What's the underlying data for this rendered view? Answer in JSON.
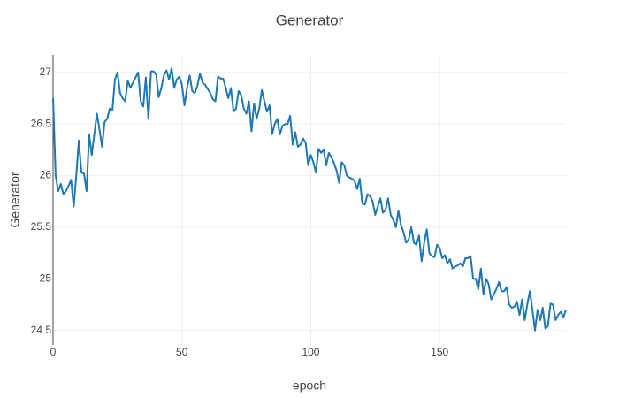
{
  "chart_data": {
    "type": "line",
    "title": "Generator",
    "x_label": "epoch",
    "y_label": "Generator",
    "color": "#1f77b4",
    "grid": true,
    "xlim": [
      0,
      199
    ],
    "xticks": [
      0,
      50,
      100,
      150
    ],
    "ylim": [
      24.36,
      27.17
    ],
    "yticks": [
      24.5,
      25,
      25.5,
      26,
      26.5,
      27
    ],
    "x": [
      0,
      1,
      2,
      3,
      4,
      5,
      6,
      7,
      8,
      9,
      10,
      11,
      12,
      13,
      14,
      15,
      16,
      17,
      18,
      19,
      20,
      21,
      22,
      23,
      24,
      25,
      26,
      27,
      28,
      29,
      30,
      31,
      32,
      33,
      34,
      35,
      36,
      37,
      38,
      39,
      40,
      41,
      42,
      43,
      44,
      45,
      46,
      47,
      48,
      49,
      50,
      51,
      52,
      53,
      54,
      55,
      56,
      57,
      58,
      59,
      60,
      61,
      62,
      63,
      64,
      65,
      66,
      67,
      68,
      69,
      70,
      71,
      72,
      73,
      74,
      75,
      76,
      77,
      78,
      79,
      80,
      81,
      82,
      83,
      84,
      85,
      86,
      87,
      88,
      89,
      90,
      91,
      92,
      93,
      94,
      95,
      96,
      97,
      98,
      99,
      100,
      101,
      102,
      103,
      104,
      105,
      106,
      107,
      108,
      109,
      110,
      111,
      112,
      113,
      114,
      115,
      116,
      117,
      118,
      119,
      120,
      121,
      122,
      123,
      124,
      125,
      126,
      127,
      128,
      129,
      130,
      131,
      132,
      133,
      134,
      135,
      136,
      137,
      138,
      139,
      140,
      141,
      142,
      143,
      144,
      145,
      146,
      147,
      148,
      149,
      150,
      151,
      152,
      153,
      154,
      155,
      156,
      157,
      158,
      159,
      160,
      161,
      162,
      163,
      164,
      165,
      166,
      167,
      168,
      169,
      170,
      171,
      172,
      173,
      174,
      175,
      176,
      177,
      178,
      179,
      180,
      181,
      182,
      183,
      184,
      185,
      186,
      187,
      188,
      189,
      190,
      191,
      192,
      193,
      194,
      195,
      196,
      197,
      198,
      199
    ],
    "values": [
      26.75,
      26.0,
      25.85,
      25.92,
      25.82,
      25.85,
      25.9,
      25.96,
      25.7,
      26.0,
      26.34,
      26.03,
      26.02,
      25.85,
      26.4,
      26.2,
      26.4,
      26.6,
      26.45,
      26.28,
      26.52,
      26.55,
      26.65,
      26.63,
      26.93,
      27.0,
      26.8,
      26.75,
      26.72,
      26.92,
      26.85,
      26.9,
      26.95,
      27.0,
      26.72,
      26.67,
      26.95,
      26.55,
      27.01,
      27.01,
      26.98,
      26.76,
      26.85,
      26.97,
      27.02,
      26.93,
      27.04,
      26.85,
      26.93,
      26.96,
      26.88,
      26.68,
      26.85,
      26.97,
      26.82,
      26.8,
      26.87,
      26.99,
      26.9,
      26.88,
      26.84,
      26.8,
      26.74,
      26.72,
      26.96,
      26.94,
      26.94,
      26.85,
      26.75,
      26.85,
      26.62,
      26.65,
      26.82,
      26.78,
      26.65,
      26.6,
      26.72,
      26.43,
      26.7,
      26.55,
      26.65,
      26.83,
      26.72,
      26.62,
      26.68,
      26.4,
      26.5,
      26.55,
      26.4,
      26.48,
      26.5,
      26.5,
      26.58,
      26.3,
      26.42,
      26.28,
      26.3,
      26.36,
      26.32,
      26.1,
      26.2,
      26.13,
      26.03,
      26.26,
      26.22,
      26.25,
      26.1,
      26.22,
      26.18,
      26.12,
      26.05,
      25.93,
      26.13,
      26.1,
      26.0,
      25.98,
      25.97,
      25.95,
      25.87,
      25.97,
      25.73,
      25.72,
      25.82,
      25.8,
      25.75,
      25.62,
      25.7,
      25.78,
      25.64,
      25.67,
      25.78,
      25.62,
      25.57,
      25.5,
      25.66,
      25.52,
      25.45,
      25.35,
      25.38,
      25.5,
      25.35,
      25.33,
      25.42,
      25.17,
      25.35,
      25.48,
      25.25,
      25.22,
      25.21,
      25.33,
      25.3,
      25.2,
      25.23,
      25.15,
      25.19,
      25.1,
      25.12,
      25.13,
      25.15,
      25.12,
      25.2,
      25.2,
      25.22,
      25.0,
      25.0,
      24.9,
      25.1,
      24.85,
      25.0,
      24.95,
      24.8,
      24.85,
      24.9,
      24.97,
      24.88,
      24.88,
      24.92,
      24.75,
      24.72,
      24.73,
      24.78,
      24.65,
      24.8,
      24.6,
      24.75,
      24.88,
      24.7,
      24.5,
      24.7,
      24.6,
      24.72,
      24.52,
      24.54,
      24.76,
      24.75,
      24.6,
      24.65,
      24.68,
      24.63,
      24.7
    ]
  }
}
